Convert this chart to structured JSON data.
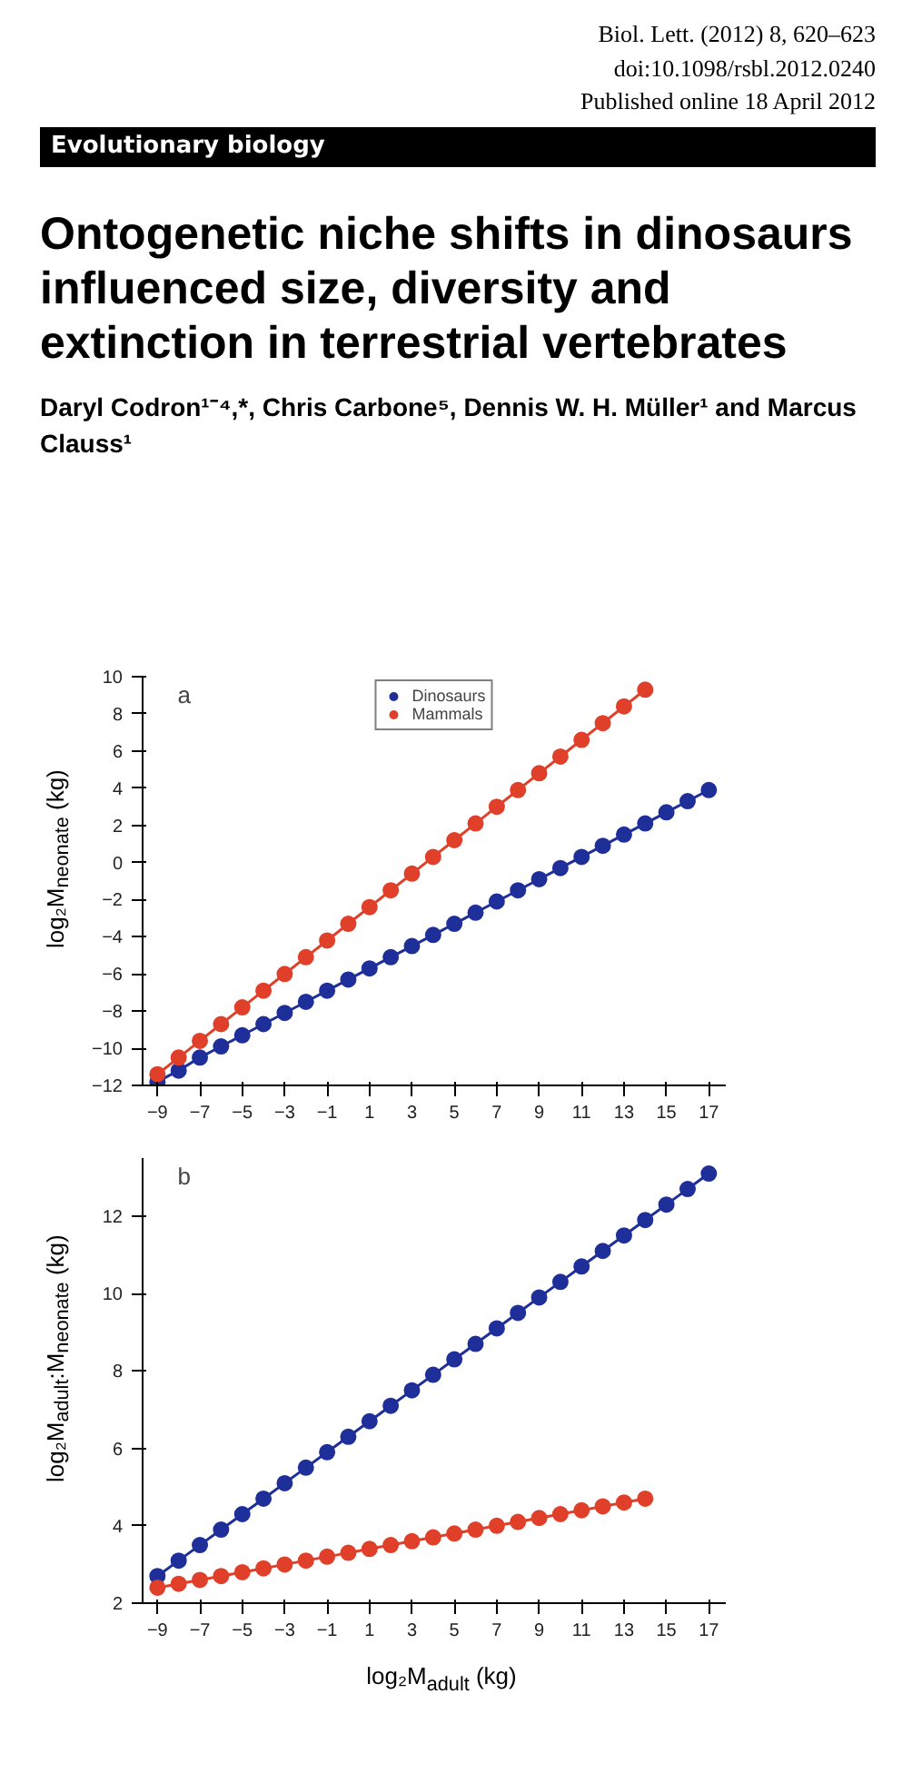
{
  "chart_data": [
    {
      "type": "line",
      "title": "Ontogenetic niche shifts in dinosaurs influenced size, diversity and extinction in terrestrial vertebrates",
      "annotations": [
        "Biol. Lett. (2012) 8, 620–623",
        "doi:10.1098/rsbl.2012.0240",
        "Published online 18 April 2012",
        "Evolutionary biology",
        "Daryl Codron¹⁻⁴,*, Chris Carbone⁵, Dennis W. H. Müller¹ and Marcus Clauss¹",
        "a"
      ],
      "ylabel": "log₂M$_{neonate}$ (kg)",
      "xlim": [
        -9.7,
        17.8
      ],
      "xticks": [
        -9,
        -7,
        -5,
        -3,
        -1,
        1,
        3,
        5,
        7,
        9,
        11,
        13,
        15,
        17
      ],
      "ylim": [
        -12,
        10
      ],
      "yticks": [
        -12,
        -10,
        -8,
        -6,
        -4,
        -2,
        0,
        2,
        4,
        6,
        8,
        10
      ],
      "grid": false,
      "legend": "top",
      "marker": "circle",
      "line_style": "solid",
      "series": [
        {
          "name": "Dinosaurs",
          "color": "#1f2f9a",
          "x": [
            -9,
            -8,
            -7,
            -6,
            -5,
            -4,
            -3,
            -2,
            -1,
            0,
            1,
            2,
            3,
            4,
            5,
            6,
            7,
            8,
            9,
            10,
            11,
            12,
            13,
            14,
            15,
            16,
            17
          ],
          "values": [
            -11.8,
            -11.2,
            -10.5,
            -9.9,
            -9.3,
            -8.7,
            -8.1,
            -7.5,
            -6.9,
            -6.3,
            -5.7,
            -5.1,
            -4.5,
            -3.9,
            -3.3,
            -2.7,
            -2.1,
            -1.5,
            -0.9,
            -0.3,
            0.3,
            0.9,
            1.5,
            2.1,
            2.7,
            3.3,
            3.9
          ]
        },
        {
          "name": "Mammals",
          "color": "#e0402a",
          "x": [
            -9,
            -8,
            -7,
            -6,
            -5,
            -4,
            -3,
            -2,
            -1,
            0,
            1,
            2,
            3,
            4,
            5,
            6,
            7,
            8,
            9,
            10,
            11,
            12,
            13,
            14
          ],
          "values": [
            -11.4,
            -10.5,
            -9.6,
            -8.7,
            -7.8,
            -6.9,
            -6.0,
            -5.1,
            -4.2,
            -3.3,
            -2.4,
            -1.5,
            -0.6,
            0.3,
            1.2,
            2.1,
            3.0,
            3.9,
            4.8,
            5.7,
            6.6,
            7.5,
            8.4,
            9.3
          ]
        }
      ]
    },
    {
      "type": "line",
      "annotations": [
        "b"
      ],
      "xlabel": "log₂M$_{adult}$ (kg)",
      "ylabel": "log₂M$_{adult}$:M$_{neonate}$ (kg)",
      "xlim": [
        -9.7,
        17.8
      ],
      "xticks": [
        -9,
        -7,
        -5,
        -3,
        -1,
        1,
        3,
        5,
        7,
        9,
        11,
        13,
        15,
        17
      ],
      "ylim": [
        2,
        13.5
      ],
      "yticks": [
        2,
        4,
        6,
        8,
        10,
        12
      ],
      "grid": false,
      "legend": false,
      "marker": "circle",
      "line_style": "solid",
      "series": [
        {
          "color": "#1f2f9a",
          "x": [
            -9,
            -8,
            -7,
            -6,
            -5,
            -4,
            -3,
            -2,
            -1,
            0,
            1,
            2,
            3,
            4,
            5,
            6,
            7,
            8,
            9,
            10,
            11,
            12,
            13,
            14,
            15,
            16,
            17
          ],
          "values": [
            2.7,
            3.1,
            3.5,
            3.9,
            4.3,
            4.7,
            5.1,
            5.5,
            5.9,
            6.3,
            6.7,
            7.1,
            7.5,
            7.9,
            8.3,
            8.7,
            9.1,
            9.5,
            9.9,
            10.3,
            10.7,
            11.1,
            11.5,
            11.9,
            12.3,
            12.7,
            13.1
          ]
        },
        {
          "color": "#e0402a",
          "x": [
            -9,
            -8,
            -7,
            -6,
            -5,
            -4,
            -3,
            -2,
            -1,
            0,
            1,
            2,
            3,
            4,
            5,
            6,
            7,
            8,
            9,
            10,
            11,
            12,
            13,
            14
          ],
          "values": [
            2.4,
            2.5,
            2.6,
            2.7,
            2.8,
            2.9,
            3.0,
            3.1,
            3.2,
            3.3,
            3.4,
            3.5,
            3.6,
            3.7,
            3.8,
            3.9,
            4.0,
            4.1,
            4.2,
            4.3,
            4.4,
            4.5,
            4.6,
            4.7
          ]
        }
      ]
    }
  ]
}
